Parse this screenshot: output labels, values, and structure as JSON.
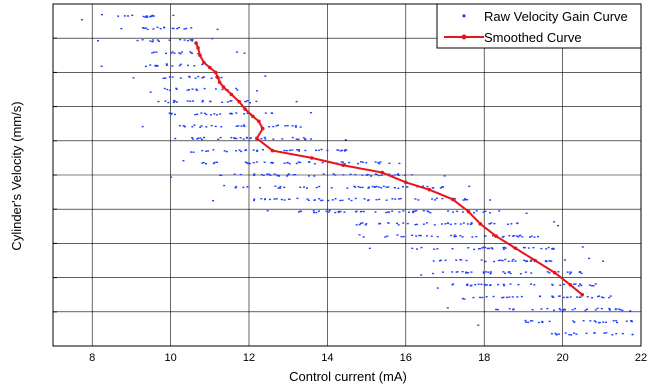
{
  "chart_data": {
    "type": "scatter",
    "xlabel": "Control current (mA)",
    "ylabel": "Cylinder's Velocity (mm/s)",
    "xlim": [
      7,
      22
    ],
    "x_ticks": [
      "8",
      "10",
      "12",
      "14",
      "16",
      "18",
      "20",
      "22"
    ],
    "y_ticks_labeled": false,
    "grid": true,
    "legend_position": "top-right",
    "colors": {
      "raw": "#1f3fff",
      "smoothed": "#e8141c",
      "grid": "#000000"
    },
    "series": [
      {
        "name": "Raw Velocity Gain Curve",
        "style": "points",
        "bands": [
          {
            "y": 0.5,
            "x_range": [
              8.4,
              10.2
            ]
          },
          {
            "y": 1.0,
            "x_range": [
              8.6,
              10.4
            ]
          },
          {
            "y": 1.5,
            "x_range": [
              9.0,
              10.6
            ]
          },
          {
            "y": 2.0,
            "x_range": [
              9.2,
              10.8
            ]
          },
          {
            "y": 2.5,
            "x_range": [
              9.4,
              11.0
            ]
          },
          {
            "y": 3.0,
            "x_range": [
              9.6,
              11.4
            ]
          },
          {
            "y": 3.5,
            "x_range": [
              9.8,
              11.8
            ]
          },
          {
            "y": 4.0,
            "x_range": [
              9.8,
              12.2
            ]
          },
          {
            "y": 4.5,
            "x_range": [
              10.0,
              12.6
            ]
          },
          {
            "y": 5.0,
            "x_range": [
              10.2,
              13.2
            ]
          },
          {
            "y": 5.5,
            "x_range": [
              10.4,
              13.8
            ]
          },
          {
            "y": 6.0,
            "x_range": [
              10.6,
              14.6
            ]
          },
          {
            "y": 6.5,
            "x_range": [
              10.8,
              15.6
            ]
          },
          {
            "y": 7.0,
            "x_range": [
              11.2,
              16.4
            ]
          },
          {
            "y": 7.5,
            "x_range": [
              11.6,
              17.0
            ]
          },
          {
            "y": 8.0,
            "x_range": [
              12.0,
              17.6
            ]
          },
          {
            "y": 8.5,
            "x_range": [
              13.2,
              18.4
            ]
          },
          {
            "y": 9.0,
            "x_range": [
              14.4,
              19.0
            ]
          },
          {
            "y": 9.5,
            "x_range": [
              15.4,
              19.4
            ]
          },
          {
            "y": 10.0,
            "x_range": [
              16.0,
              19.8
            ]
          },
          {
            "y": 10.5,
            "x_range": [
              16.4,
              20.2
            ]
          },
          {
            "y": 11.0,
            "x_range": [
              16.8,
              20.6
            ]
          },
          {
            "y": 11.5,
            "x_range": [
              17.2,
              21.0
            ]
          },
          {
            "y": 12.0,
            "x_range": [
              17.6,
              21.4
            ]
          },
          {
            "y": 12.5,
            "x_range": [
              18.2,
              21.6
            ]
          },
          {
            "y": 13.0,
            "x_range": [
              18.8,
              21.8
            ]
          },
          {
            "y": 13.5,
            "x_range": [
              19.6,
              21.8
            ]
          }
        ]
      },
      {
        "name": "Smoothed Curve",
        "style": "line-with-markers",
        "x": [
          10.65,
          10.7,
          10.75,
          10.85,
          11.0,
          11.15,
          11.2,
          11.25,
          11.35,
          11.55,
          11.75,
          11.9,
          12.1,
          12.25,
          12.35,
          12.2,
          12.6,
          13.6,
          14.4,
          15.4,
          16.0,
          16.6,
          17.2,
          17.6,
          17.9,
          18.3,
          18.8,
          19.3,
          19.8,
          20.2,
          20.5
        ],
        "y": [
          1.6,
          1.8,
          2.1,
          2.4,
          2.6,
          2.8,
          3.0,
          3.2,
          3.4,
          3.7,
          4.0,
          4.3,
          4.6,
          4.8,
          5.1,
          5.5,
          6.0,
          6.3,
          6.6,
          6.9,
          7.3,
          7.6,
          8.0,
          8.5,
          9.0,
          9.5,
          10.0,
          10.5,
          11.0,
          11.5,
          11.9
        ]
      }
    ]
  }
}
